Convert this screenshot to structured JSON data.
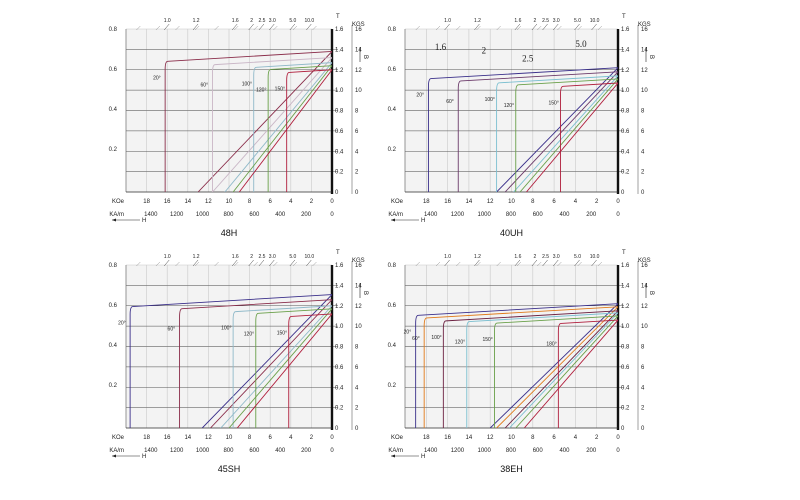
{
  "figure": {
    "left_axis_values": [
      "0.8",
      "0.6",
      "0.4",
      "0.2"
    ],
    "top_ratio_labels": [
      "1.0",
      "1.2",
      "1.6",
      "2",
      "2.5",
      "3.0",
      "5.0",
      "10.0"
    ],
    "right_t_labels": [
      "1.6",
      "1.4",
      "1.2",
      "1.0",
      "0.8",
      "0.6",
      "0.4",
      "0.2",
      "0"
    ],
    "right_kgs_labels": [
      "16",
      "14",
      "12",
      "10",
      "8",
      "6",
      "4",
      "2",
      "0"
    ],
    "t_unit": "T",
    "kgs_unit": "KGS",
    "b_symbol": "B",
    "koe_label": "KOe",
    "koe_ticks": [
      "18",
      "16",
      "14",
      "12",
      "10",
      "8",
      "6",
      "4",
      "2",
      "0"
    ],
    "kam_label": "KA/m",
    "kam_ticks": [
      "1400",
      "1200",
      "1000",
      "800",
      "600",
      "400",
      "200",
      "0"
    ],
    "h_label": "H"
  },
  "chart_data": [
    {
      "type": "line",
      "title": "48H",
      "xlabel": "H (KOe / KA/m)",
      "ylabel": "B (T / KGS)",
      "xlim": [
        20,
        0
      ],
      "ylim": [
        0,
        1.6
      ],
      "series": [
        {
          "name": "20°",
          "color": "#8a2d4a",
          "bhc": 13.0,
          "br": 1.38,
          "hcj": 16.2
        },
        {
          "name": "60°",
          "color": "#c9b6c6",
          "bhc": 11.6,
          "br": 1.32,
          "hcj": 11.6
        },
        {
          "name": "100°",
          "color": "#8fb9c9",
          "bhc": 10.4,
          "br": 1.27,
          "hcj": 7.6
        },
        {
          "name": "120°",
          "color": "#6aa04a",
          "bhc": 9.6,
          "br": 1.24,
          "hcj": 6.2
        },
        {
          "name": "150°",
          "color": "#b01e3c",
          "bhc": 9.0,
          "br": 1.2,
          "hcj": 4.4
        }
      ]
    },
    {
      "type": "line",
      "title": "40UH",
      "xlabel": "H (KOe / KA/m)",
      "ylabel": "B (T / KGS)",
      "xlim": [
        20,
        0
      ],
      "ylim": [
        0,
        1.6
      ],
      "ratio_annotations": [
        "1.6",
        "2",
        "2.5",
        "5.0"
      ],
      "series": [
        {
          "name": "20°",
          "color": "#3a2f8a",
          "bhc": 11.4,
          "br": 1.22,
          "hcj": 17.8
        },
        {
          "name": "60°",
          "color": "#6b3a6a",
          "bhc": 10.6,
          "br": 1.18,
          "hcj": 15.0
        },
        {
          "name": "100°",
          "color": "#7bbfd0",
          "bhc": 9.8,
          "br": 1.14,
          "hcj": 11.4
        },
        {
          "name": "120°",
          "color": "#6aa04a",
          "bhc": 9.2,
          "br": 1.11,
          "hcj": 9.6
        },
        {
          "name": "150°",
          "color": "#b01e3c",
          "bhc": 8.6,
          "br": 1.07,
          "hcj": 5.4
        }
      ]
    },
    {
      "type": "line",
      "title": "45SH",
      "xlabel": "H (KOe / KA/m)",
      "ylabel": "B (T / KGS)",
      "xlim": [
        20,
        0
      ],
      "ylim": [
        0,
        1.6
      ],
      "series": [
        {
          "name": "20°",
          "color": "#3a2f8a",
          "bhc": 12.6,
          "br": 1.31,
          "hcj": 19.6
        },
        {
          "name": "60°",
          "color": "#8a2d4a",
          "bhc": 11.8,
          "br": 1.26,
          "hcj": 14.8
        },
        {
          "name": "100°",
          "color": "#8fb9c9",
          "bhc": 10.8,
          "br": 1.2,
          "hcj": 9.6
        },
        {
          "name": "120°",
          "color": "#6aa04a",
          "bhc": 10.0,
          "br": 1.17,
          "hcj": 7.4
        },
        {
          "name": "150°",
          "color": "#b01e3c",
          "bhc": 9.2,
          "br": 1.12,
          "hcj": 4.2
        }
      ]
    },
    {
      "type": "line",
      "title": "38EH",
      "xlabel": "H (KOe / KA/m)",
      "ylabel": "B (T / KGS)",
      "xlim": [
        20,
        0
      ],
      "ylim": [
        0,
        1.6
      ],
      "series": [
        {
          "name": "20°",
          "color": "#3a2f8a",
          "bhc": 12.0,
          "br": 1.22,
          "hcj": 19.0
        },
        {
          "name": "60°",
          "color": "#e07a1a",
          "bhc": 11.4,
          "br": 1.19,
          "hcj": 18.2
        },
        {
          "name": "100°",
          "color": "#6b2040",
          "bhc": 10.6,
          "br": 1.15,
          "hcj": 16.4
        },
        {
          "name": "120°",
          "color": "#7bbfd0",
          "bhc": 10.2,
          "br": 1.13,
          "hcj": 14.2
        },
        {
          "name": "150°",
          "color": "#6aa04a",
          "bhc": 9.6,
          "br": 1.1,
          "hcj": 11.6
        },
        {
          "name": "180°",
          "color": "#b01e3c",
          "bhc": 8.8,
          "br": 1.06,
          "hcj": 5.6
        }
      ]
    }
  ]
}
